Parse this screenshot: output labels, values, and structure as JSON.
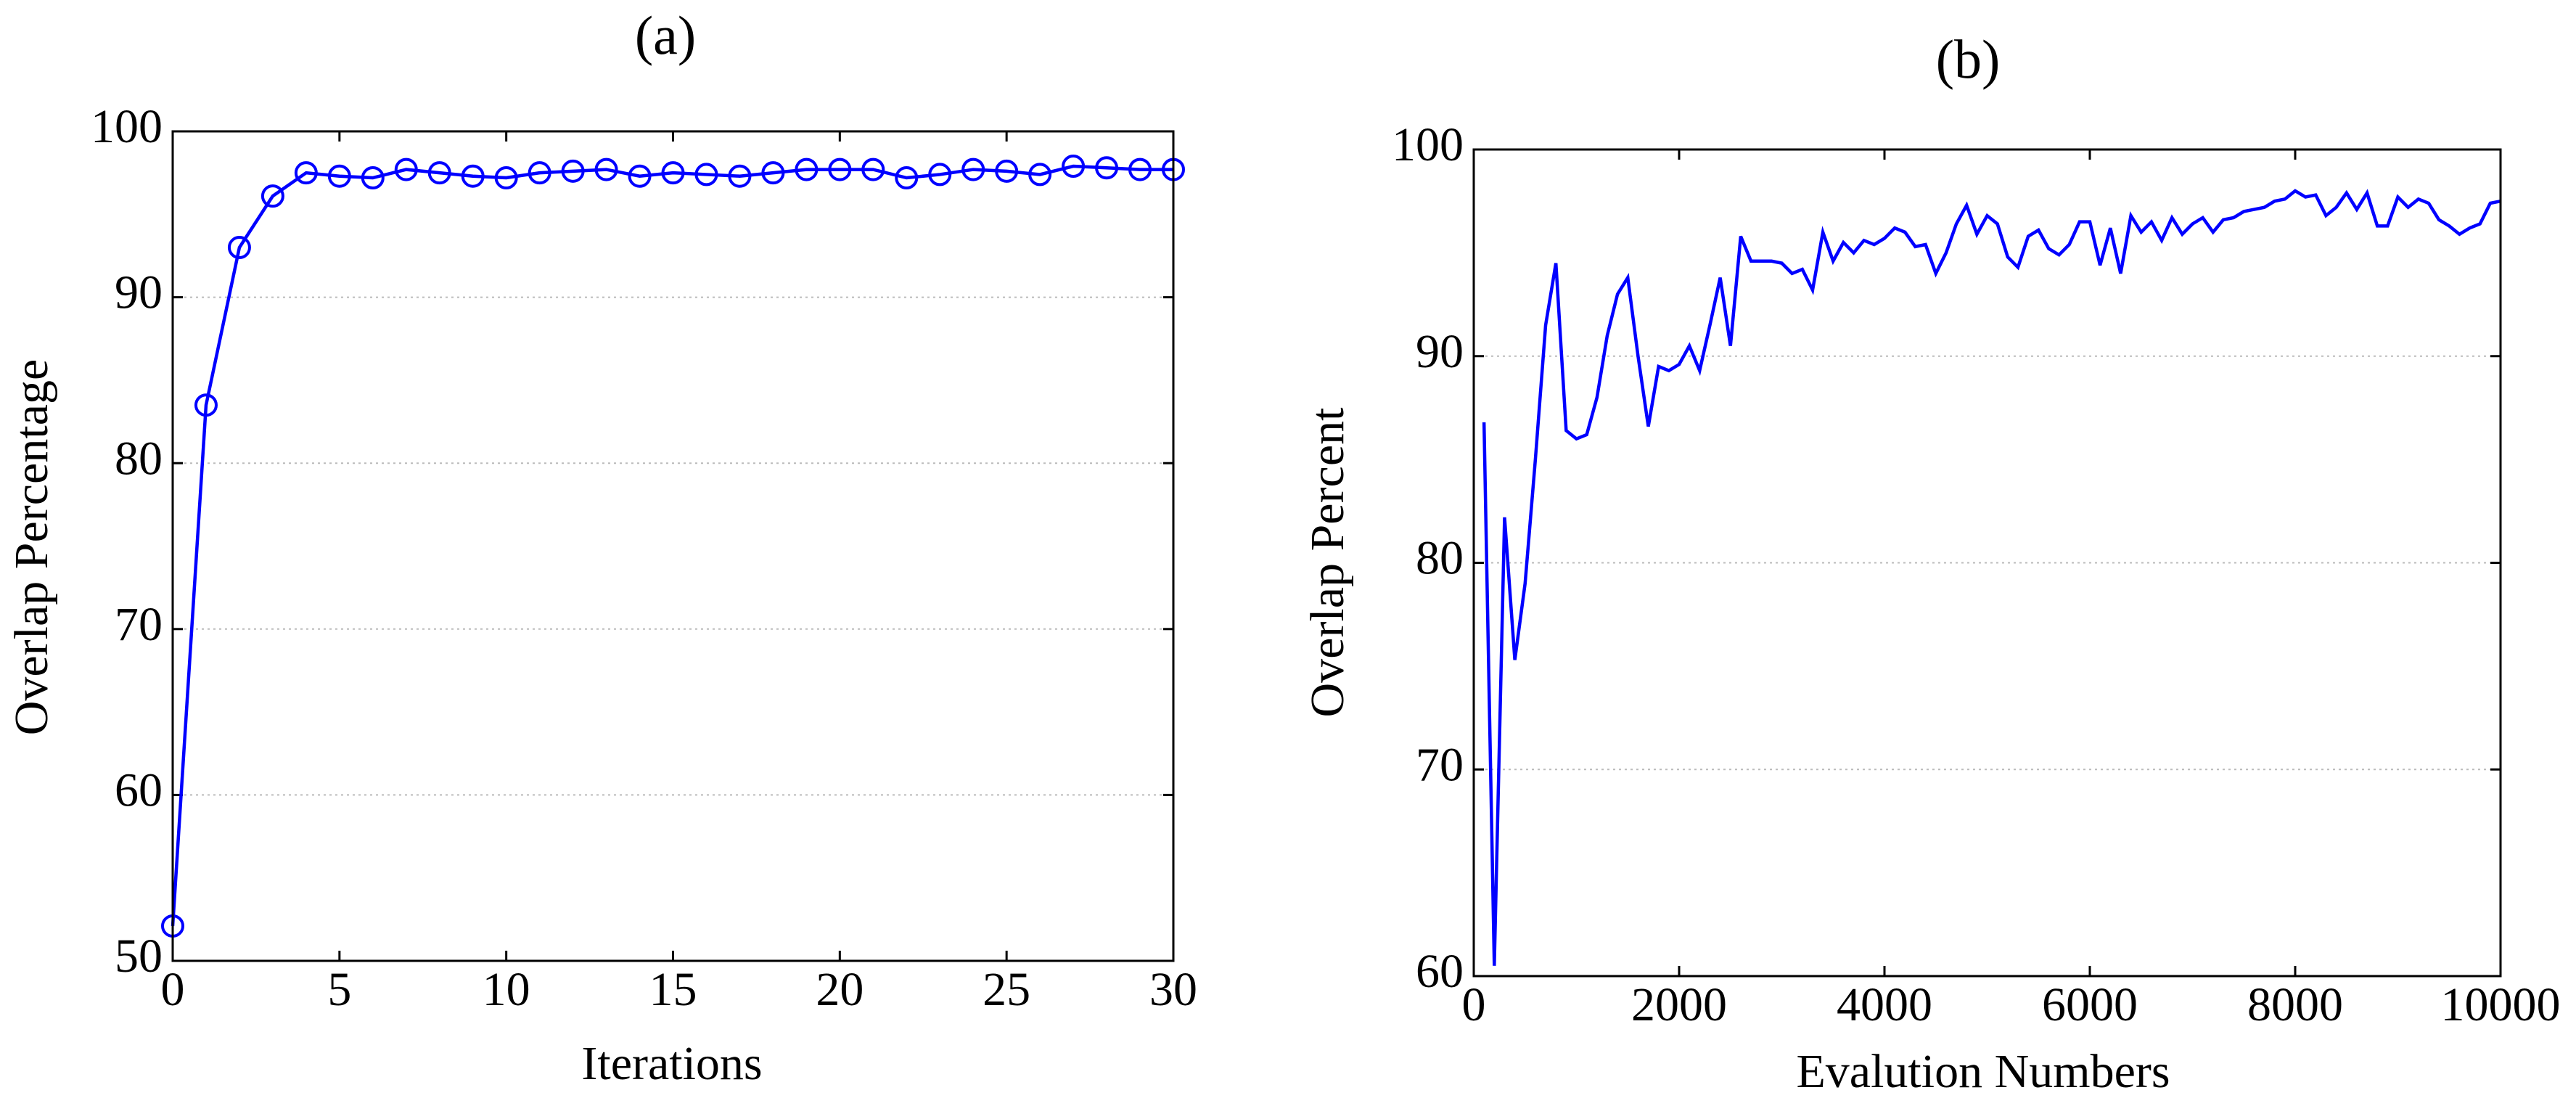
{
  "chart_data": [
    {
      "type": "line",
      "title": "(a)",
      "xlabel": "Iterations",
      "ylabel": "Overlap Percentage",
      "x": [
        0,
        1,
        2,
        3,
        4,
        5,
        6,
        7,
        8,
        9,
        10,
        11,
        12,
        13,
        14,
        15,
        16,
        17,
        18,
        19,
        20,
        21,
        22,
        23,
        24,
        25,
        26,
        27,
        28,
        29,
        30
      ],
      "series": [
        {
          "color": "#0000ff",
          "marker": "circle",
          "values": [
            52.1,
            83.5,
            93,
            96.1,
            97.5,
            97.3,
            97.2,
            97.7,
            97.5,
            97.3,
            97.2,
            97.5,
            97.6,
            97.7,
            97.3,
            97.5,
            97.4,
            97.3,
            97.5,
            97.7,
            97.7,
            97.7,
            97.2,
            97.4,
            97.7,
            97.6,
            97.4,
            97.9,
            97.8,
            97.7,
            97.7
          ]
        }
      ],
      "xlim": [
        0,
        30
      ],
      "xticks": [
        0,
        5,
        10,
        15,
        20,
        25,
        30
      ],
      "ylim": [
        50,
        100
      ],
      "yticks": [
        50,
        60,
        70,
        80,
        90,
        100
      ],
      "grid": true
    },
    {
      "type": "line",
      "title": "(b)",
      "xlabel": "Evalution Numbers",
      "ylabel": "Overlap Percent",
      "x": [
        100,
        200,
        300,
        400,
        500,
        600,
        700,
        800,
        900,
        1000,
        1100,
        1200,
        1300,
        1400,
        1500,
        1600,
        1700,
        1800,
        1900,
        2000,
        2100,
        2200,
        2300,
        2400,
        2500,
        2600,
        2700,
        2800,
        2900,
        3000,
        3100,
        3200,
        3300,
        3400,
        3500,
        3600,
        3700,
        3800,
        3900,
        4000,
        4100,
        4200,
        4300,
        4400,
        4500,
        4600,
        4700,
        4800,
        4900,
        5000,
        5100,
        5200,
        5300,
        5400,
        5500,
        5600,
        5700,
        5800,
        5900,
        6000,
        6100,
        6200,
        6300,
        6400,
        6500,
        6600,
        6700,
        6800,
        6900,
        7000,
        7100,
        7200,
        7300,
        7400,
        7500,
        7600,
        7700,
        7800,
        7900,
        8000,
        8100,
        8200,
        8300,
        8400,
        8500,
        8600,
        8700,
        8800,
        8900,
        9000,
        9100,
        9200,
        9300,
        9400,
        9500,
        9600,
        9700,
        9800,
        9900,
        10000
      ],
      "series": [
        {
          "color": "#0000ff",
          "marker": "none",
          "values": [
            86.8,
            60.5,
            82.2,
            75.3,
            79,
            85,
            91.5,
            94.5,
            86.4,
            86,
            86.2,
            88,
            91,
            93,
            93.8,
            90,
            86.6,
            89.5,
            89.3,
            89.6,
            90.5,
            89.3,
            91.5,
            93.8,
            90.5,
            95.8,
            94.6,
            94.6,
            94.6,
            94.5,
            94,
            94.2,
            93.2,
            96,
            94.6,
            95.5,
            95,
            95.6,
            95.4,
            95.7,
            96.2,
            96,
            95.3,
            95.4,
            94,
            95,
            96.4,
            97.3,
            95.9,
            96.8,
            96.4,
            94.8,
            94.3,
            95.8,
            96.1,
            95.2,
            94.9,
            95.4,
            96.5,
            96.5,
            94.4,
            96.2,
            94,
            96.8,
            96,
            96.5,
            95.6,
            96.7,
            95.9,
            96.4,
            96.7,
            96,
            96.6,
            96.7,
            97,
            97.1,
            97.2,
            97.5,
            97.6,
            98,
            97.7,
            97.8,
            96.8,
            97.2,
            97.9,
            97.1,
            97.9,
            96.3,
            96.3,
            97.7,
            97.2,
            97.6,
            97.4,
            96.6,
            96.3,
            95.9,
            96.2,
            96.4,
            97.4,
            97.5
          ]
        }
      ],
      "xlim": [
        0,
        10000
      ],
      "xticks": [
        0,
        2000,
        4000,
        6000,
        8000,
        10000
      ],
      "ylim": [
        60,
        100
      ],
      "yticks": [
        60,
        70,
        80,
        90,
        100
      ],
      "grid": true
    }
  ]
}
